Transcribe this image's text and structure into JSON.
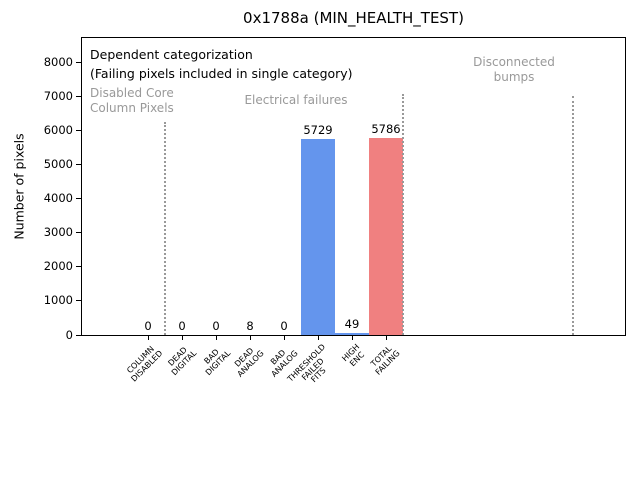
{
  "colors": {
    "bar_blue": "#6495ED",
    "bar_red": "#F08080",
    "annotation_gray": "#999999",
    "background": "#ffffff"
  },
  "chart_data": {
    "type": "bar",
    "title": "0x1788a (MIN_HEALTH_TEST)",
    "xlabel": "",
    "ylabel": "Number of pixels",
    "categories": [
      "COLUMN\nDISABLED",
      "DEAD\nDIGITAL",
      "BAD\nDIGITAL",
      "DEAD\nANALOG",
      "BAD\nANALOG",
      "THRESHOLD\nFAILED\nFITS",
      "HIGH\nENC",
      "TOTAL\nFAILING"
    ],
    "values": [
      0,
      0,
      0,
      8,
      0,
      5729,
      49,
      5786
    ],
    "bar_colors": [
      "#6495ED",
      "#6495ED",
      "#6495ED",
      "#6495ED",
      "#6495ED",
      "#6495ED",
      "#6495ED",
      "#F08080"
    ],
    "value_labels": [
      "0",
      "0",
      "0",
      "8",
      "0",
      "5729",
      "49",
      "5786"
    ],
    "yticks": [
      0,
      1000,
      2000,
      3000,
      4000,
      5000,
      6000,
      7000,
      8000
    ],
    "ylim": [
      0,
      8740
    ],
    "grid": false,
    "legend": null,
    "separators_x": [
      0.5,
      7.5,
      12.5
    ],
    "annotations": {
      "note1": "Dependent categorization",
      "note2": "(Failing pixels included in single category)",
      "regions": [
        {
          "label": "Disabled Core\nColumn Pixels"
        },
        {
          "label": "Electrical failures"
        },
        {
          "label": "Disconnected\nbumps"
        }
      ]
    }
  }
}
